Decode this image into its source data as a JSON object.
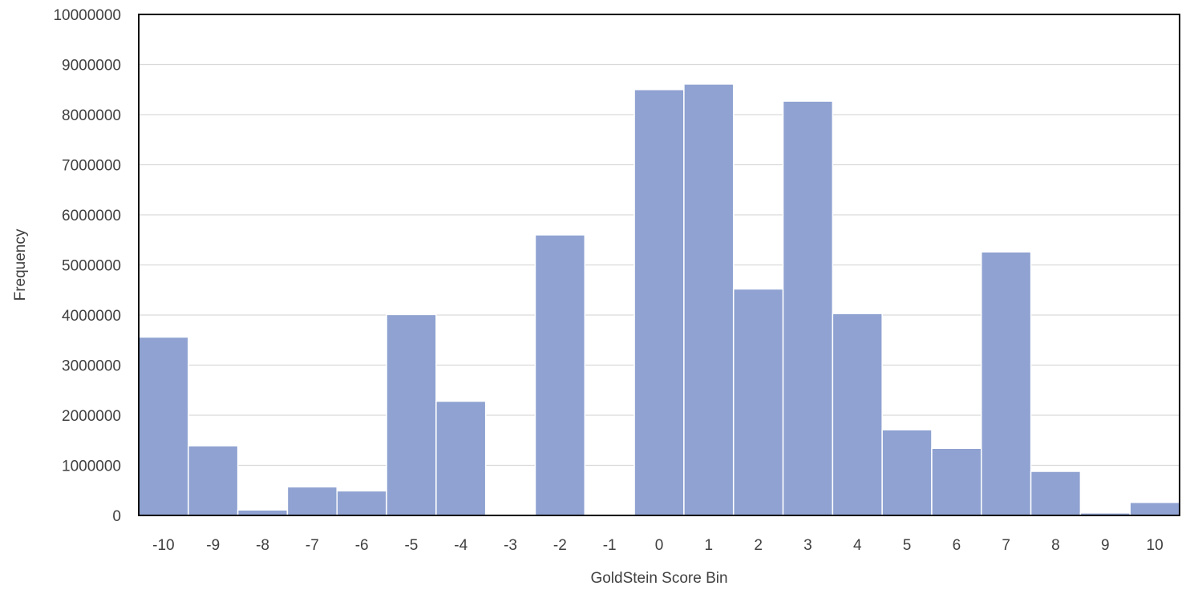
{
  "chart_data": {
    "type": "bar",
    "title": "",
    "xlabel": "GoldStein Score Bin",
    "ylabel": "Frequency",
    "categories": [
      "-10",
      "-9",
      "-8",
      "-7",
      "-6",
      "-5",
      "-4",
      "-3",
      "-2",
      "-1",
      "0",
      "1",
      "2",
      "3",
      "4",
      "5",
      "6",
      "7",
      "8",
      "9",
      "10"
    ],
    "values": [
      3560000,
      1390000,
      110000,
      570000,
      490000,
      4010000,
      2280000,
      20000,
      5600000,
      20000,
      8500000,
      8610000,
      4520000,
      8270000,
      4030000,
      1710000,
      1340000,
      5260000,
      880000,
      50000,
      260000
    ],
    "ylim": [
      0,
      10000000
    ],
    "yticks": [
      "0",
      "1000000",
      "2000000",
      "3000000",
      "4000000",
      "5000000",
      "6000000",
      "7000000",
      "8000000",
      "9000000",
      "10000000"
    ],
    "grid": true,
    "legend": "none",
    "colors": {
      "bar": "#8fa2d1",
      "grid": "#d9d9d9",
      "frame": "#000000",
      "text": "#404040"
    }
  }
}
